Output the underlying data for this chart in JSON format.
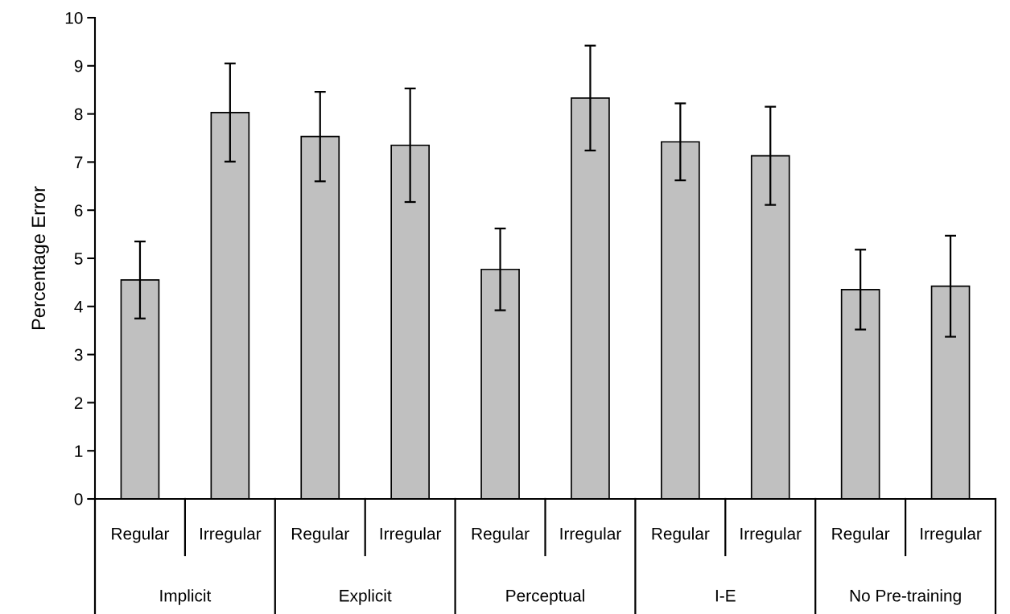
{
  "chart_data": {
    "type": "bar",
    "ylabel": "Percentage Error",
    "categories": [
      "Regular",
      "Irregular",
      "Regular",
      "Irregular",
      "Regular",
      "Irregular",
      "Regular",
      "Irregular",
      "Regular",
      "Irregular"
    ],
    "values": [
      4.55,
      8.03,
      7.53,
      7.35,
      4.77,
      8.33,
      7.42,
      7.13,
      4.35,
      4.42
    ],
    "errors": [
      0.8,
      1.02,
      0.93,
      1.18,
      0.85,
      1.09,
      0.8,
      1.02,
      0.83,
      1.05
    ],
    "color": "#c0c0c0",
    "ylim": [
      0,
      10
    ],
    "yticks": [
      0,
      1,
      2,
      3,
      4,
      5,
      6,
      7,
      8,
      9,
      10
    ],
    "annotations": [
      "Implicit",
      "Explicit",
      "Perceptual",
      "I-E",
      "No Pre-training"
    ],
    "grid": false,
    "legend": false
  }
}
